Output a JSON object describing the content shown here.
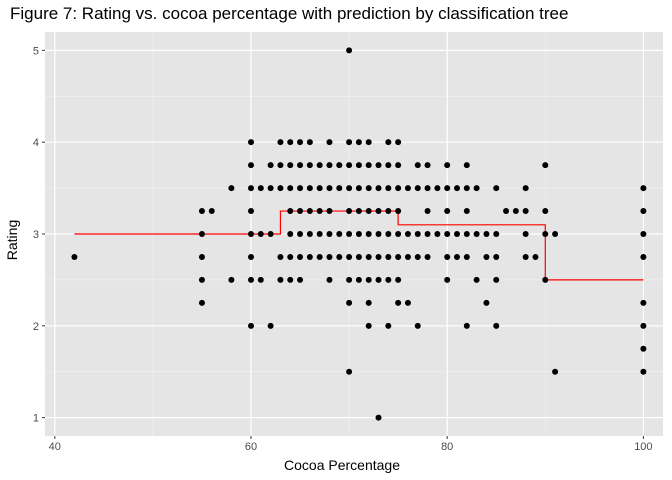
{
  "chart_data": {
    "type": "scatter",
    "title": "Figure 7: Rating vs. cocoa percentage with prediction by classification tree",
    "xlabel": "Cocoa Percentage",
    "ylabel": "Rating",
    "xlim": [
      39,
      102
    ],
    "ylim": [
      0.8,
      5.2
    ],
    "xticks": [
      40,
      60,
      80,
      100
    ],
    "yticks": [
      1,
      2,
      3,
      4,
      5
    ],
    "grid": true,
    "background": "#e5e5e5",
    "point_color": "#000000",
    "line_color": "#ff0000",
    "series": [
      {
        "kind": "points",
        "points": [
          [
            42,
            2.75
          ],
          [
            55,
            2.25
          ],
          [
            55,
            2.5
          ],
          [
            55,
            2.75
          ],
          [
            55,
            3
          ],
          [
            55,
            3.25
          ],
          [
            56,
            3.25
          ],
          [
            58,
            3.5
          ],
          [
            58,
            2.5
          ],
          [
            60,
            2
          ],
          [
            60,
            2.5
          ],
          [
            60,
            2.75
          ],
          [
            60,
            3
          ],
          [
            60,
            3.25
          ],
          [
            60,
            3.5
          ],
          [
            60,
            3.75
          ],
          [
            60,
            4
          ],
          [
            61,
            2.5
          ],
          [
            61,
            3
          ],
          [
            61,
            3.5
          ],
          [
            62,
            2
          ],
          [
            62,
            3
          ],
          [
            62,
            3.5
          ],
          [
            62,
            3.75
          ],
          [
            63,
            2.5
          ],
          [
            63,
            2.75
          ],
          [
            63,
            3.5
          ],
          [
            63,
            3.75
          ],
          [
            63,
            4
          ],
          [
            64,
            2.5
          ],
          [
            64,
            2.75
          ],
          [
            64,
            3
          ],
          [
            64,
            3.25
          ],
          [
            64,
            3.5
          ],
          [
            64,
            3.75
          ],
          [
            64,
            4
          ],
          [
            65,
            2.5
          ],
          [
            65,
            2.75
          ],
          [
            65,
            3
          ],
          [
            65,
            3.25
          ],
          [
            65,
            3.5
          ],
          [
            65,
            3.75
          ],
          [
            65,
            4
          ],
          [
            66,
            2.75
          ],
          [
            66,
            3
          ],
          [
            66,
            3.25
          ],
          [
            66,
            3.5
          ],
          [
            66,
            3.75
          ],
          [
            66,
            4
          ],
          [
            67,
            2.75
          ],
          [
            67,
            3
          ],
          [
            67,
            3.25
          ],
          [
            67,
            3.5
          ],
          [
            67,
            3.75
          ],
          [
            68,
            2.5
          ],
          [
            68,
            2.75
          ],
          [
            68,
            3
          ],
          [
            68,
            3.25
          ],
          [
            68,
            3.5
          ],
          [
            68,
            3.75
          ],
          [
            68,
            4
          ],
          [
            69,
            2.75
          ],
          [
            69,
            3
          ],
          [
            69,
            3.5
          ],
          [
            69,
            3.75
          ],
          [
            70,
            1.5
          ],
          [
            70,
            2.25
          ],
          [
            70,
            2.5
          ],
          [
            70,
            2.75
          ],
          [
            70,
            3
          ],
          [
            70,
            3.25
          ],
          [
            70,
            3.5
          ],
          [
            70,
            3.75
          ],
          [
            70,
            4
          ],
          [
            70,
            5
          ],
          [
            71,
            2.5
          ],
          [
            71,
            2.75
          ],
          [
            71,
            3
          ],
          [
            71,
            3.25
          ],
          [
            71,
            3.5
          ],
          [
            71,
            3.75
          ],
          [
            71,
            4
          ],
          [
            72,
            2
          ],
          [
            72,
            2.25
          ],
          [
            72,
            2.5
          ],
          [
            72,
            2.75
          ],
          [
            72,
            3
          ],
          [
            72,
            3.25
          ],
          [
            72,
            3.5
          ],
          [
            72,
            3.75
          ],
          [
            72,
            4
          ],
          [
            73,
            1
          ],
          [
            73,
            2.5
          ],
          [
            73,
            2.75
          ],
          [
            73,
            3
          ],
          [
            73,
            3.25
          ],
          [
            73,
            3.5
          ],
          [
            73,
            3.75
          ],
          [
            74,
            2
          ],
          [
            74,
            2.5
          ],
          [
            74,
            2.75
          ],
          [
            74,
            3
          ],
          [
            74,
            3.25
          ],
          [
            74,
            3.5
          ],
          [
            74,
            3.75
          ],
          [
            74,
            4
          ],
          [
            75,
            2.25
          ],
          [
            75,
            2.5
          ],
          [
            75,
            2.75
          ],
          [
            75,
            3
          ],
          [
            75,
            3.25
          ],
          [
            75,
            3.5
          ],
          [
            75,
            3.75
          ],
          [
            75,
            4
          ],
          [
            76,
            2.25
          ],
          [
            76,
            2.75
          ],
          [
            76,
            3
          ],
          [
            76,
            3.5
          ],
          [
            77,
            2
          ],
          [
            77,
            2.75
          ],
          [
            77,
            3
          ],
          [
            77,
            3.5
          ],
          [
            77,
            3.75
          ],
          [
            78,
            2.75
          ],
          [
            78,
            3
          ],
          [
            78,
            3.25
          ],
          [
            78,
            3.5
          ],
          [
            78,
            3.75
          ],
          [
            79,
            3
          ],
          [
            79,
            3.5
          ],
          [
            80,
            2.5
          ],
          [
            80,
            2.75
          ],
          [
            80,
            3
          ],
          [
            80,
            3.25
          ],
          [
            80,
            3.5
          ],
          [
            80,
            3.75
          ],
          [
            81,
            2.75
          ],
          [
            81,
            3
          ],
          [
            81,
            3.5
          ],
          [
            82,
            2
          ],
          [
            82,
            2.75
          ],
          [
            82,
            3
          ],
          [
            82,
            3.25
          ],
          [
            82,
            3.5
          ],
          [
            82,
            3.75
          ],
          [
            83,
            2.5
          ],
          [
            83,
            3
          ],
          [
            83,
            3.5
          ],
          [
            84,
            2.25
          ],
          [
            84,
            2.75
          ],
          [
            84,
            3
          ],
          [
            85,
            2
          ],
          [
            85,
            2.5
          ],
          [
            85,
            2.75
          ],
          [
            85,
            3
          ],
          [
            85,
            3.5
          ],
          [
            86,
            3.25
          ],
          [
            87,
            3.25
          ],
          [
            88,
            2.75
          ],
          [
            88,
            3
          ],
          [
            88,
            3.25
          ],
          [
            88,
            3.5
          ],
          [
            89,
            2.75
          ],
          [
            90,
            2.5
          ],
          [
            90,
            3
          ],
          [
            90,
            3.25
          ],
          [
            90,
            3.75
          ],
          [
            91,
            1.5
          ],
          [
            91,
            3
          ],
          [
            100,
            1.5
          ],
          [
            100,
            1.75
          ],
          [
            100,
            2
          ],
          [
            100,
            2.25
          ],
          [
            100,
            2.75
          ],
          [
            100,
            3
          ],
          [
            100,
            3.25
          ],
          [
            100,
            3.5
          ]
        ]
      },
      {
        "kind": "step_line",
        "points": [
          [
            42,
            3.0
          ],
          [
            63,
            3.0
          ],
          [
            63,
            3.25
          ],
          [
            75,
            3.25
          ],
          [
            75,
            3.1
          ],
          [
            90,
            3.1
          ],
          [
            90,
            2.5
          ],
          [
            100,
            2.5
          ]
        ]
      }
    ]
  }
}
